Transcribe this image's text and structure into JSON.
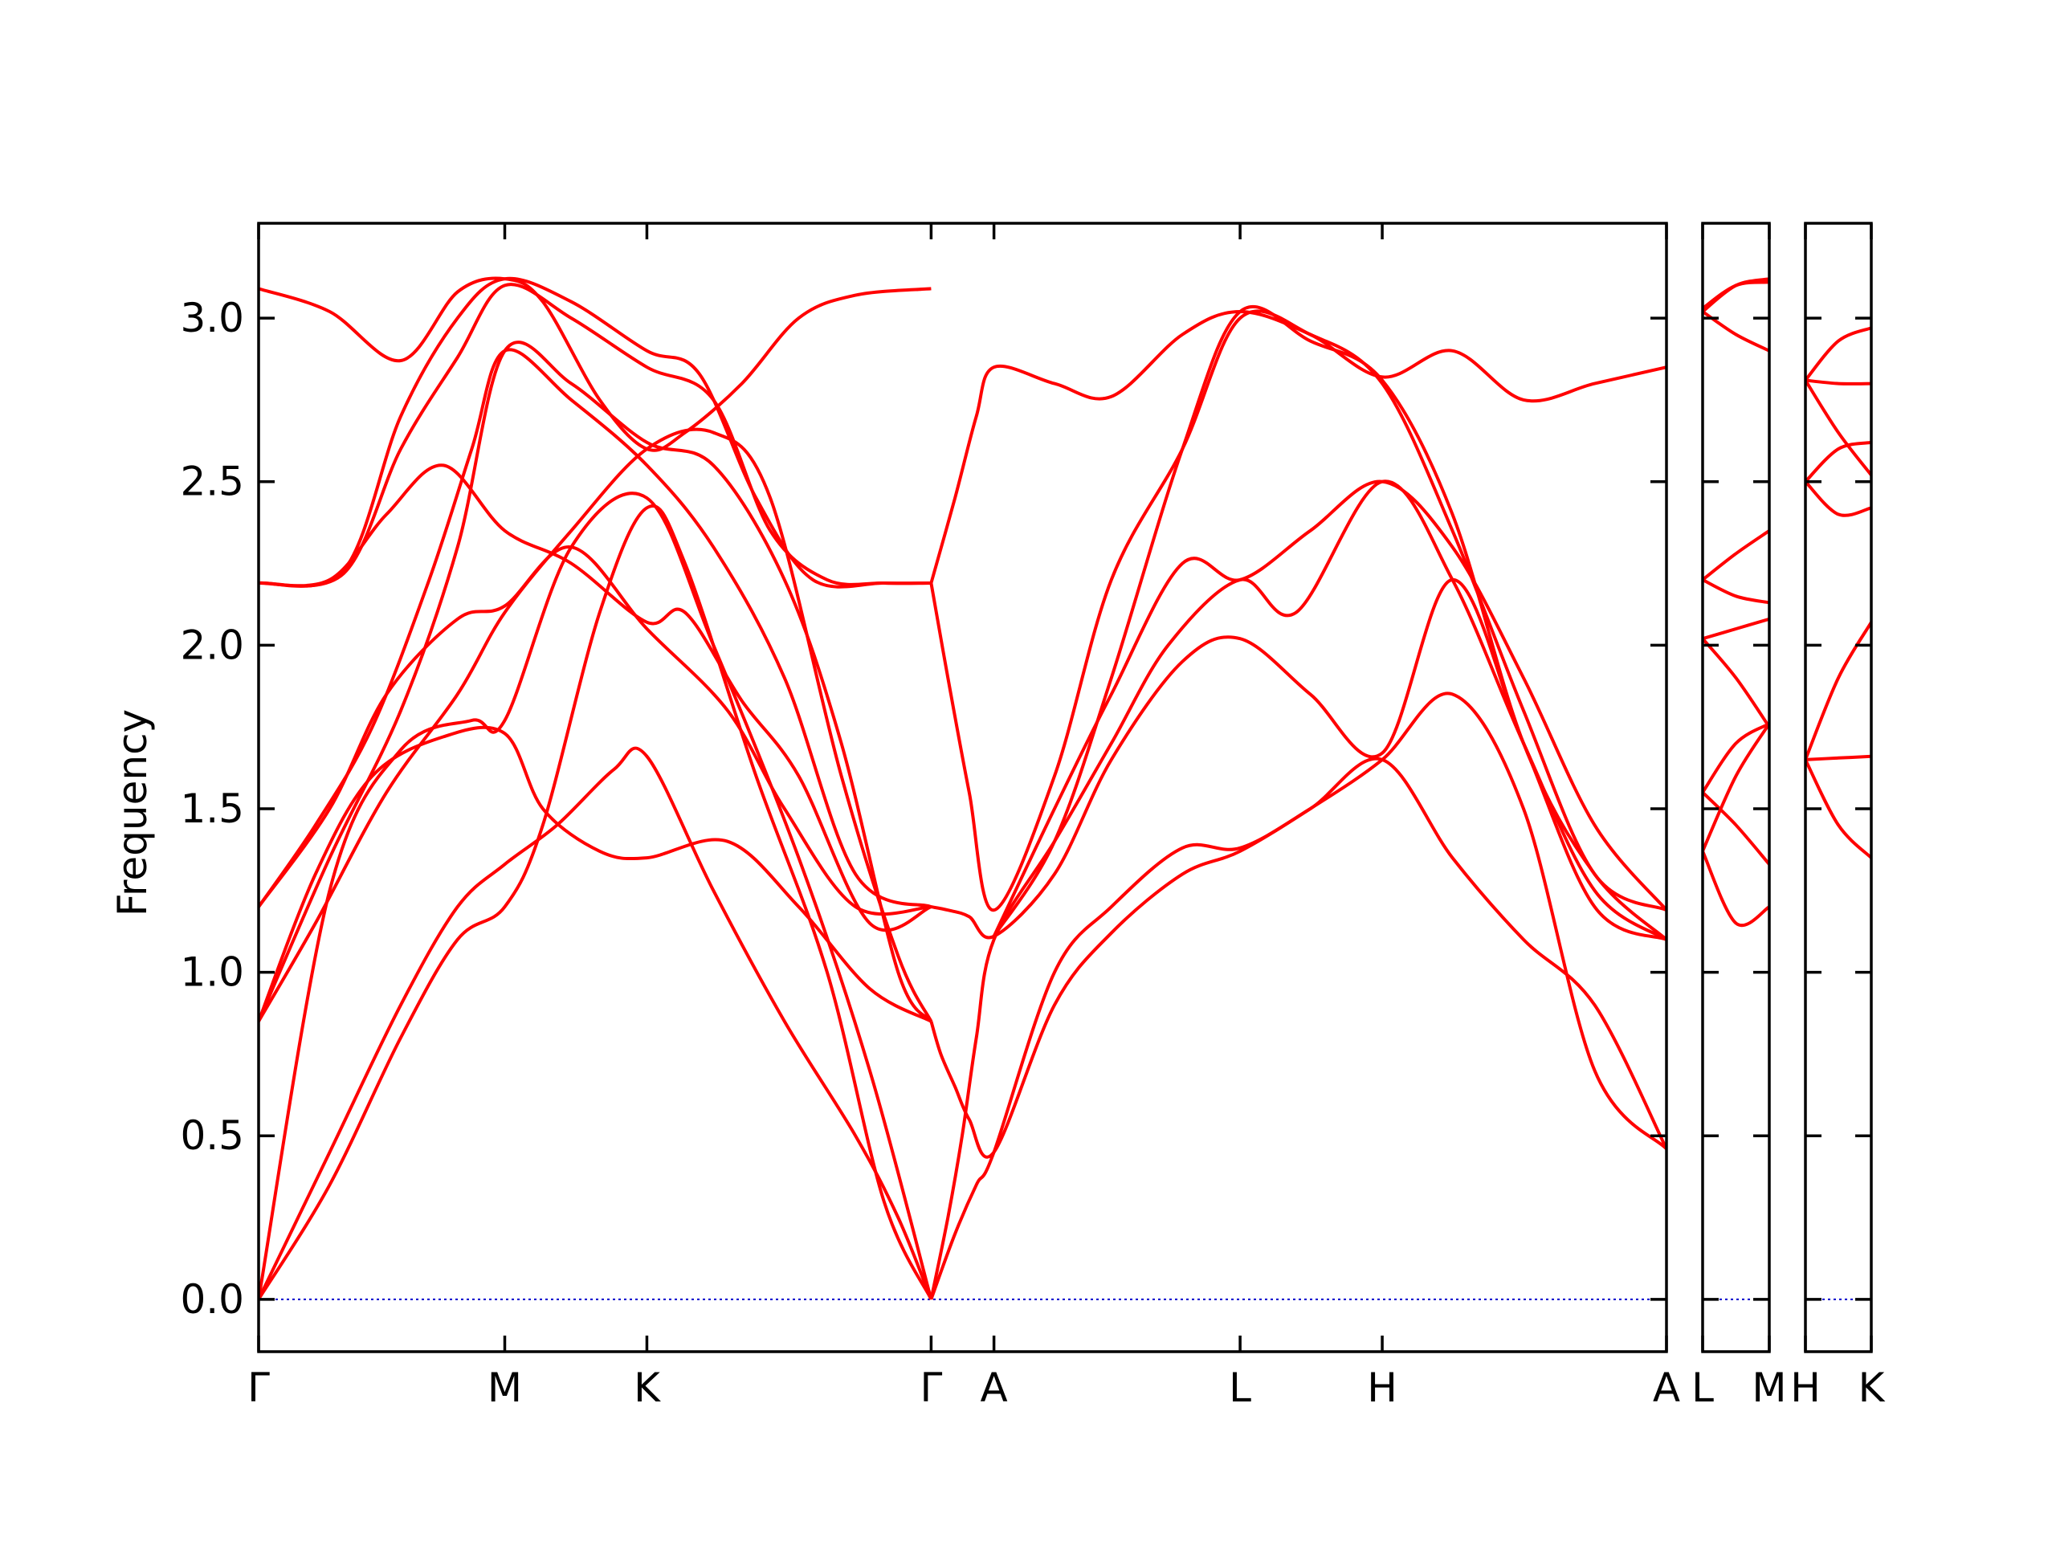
{
  "chart_data": {
    "type": "line",
    "ylabel": "Frequency",
    "yticks": [
      "0.0",
      "0.5",
      "1.0",
      "1.5",
      "2.0",
      "2.5",
      "3.0"
    ],
    "ylim": [
      -0.16,
      3.29
    ],
    "colors": {
      "bands": "#ff0000",
      "zero_line": "#0000cc",
      "axes": "#000000"
    },
    "panels": [
      {
        "name": "Γ-M-K-Γ-A-L-H-A",
        "labels": [
          "Γ",
          "M",
          "K",
          "Γ",
          "A",
          "L",
          "H",
          "A"
        ],
        "label_x": [
          0,
          1.732,
          2.732,
          4.732,
          5.174,
          6.906,
          7.906,
          9.906
        ],
        "bands": [
          {
            "x": [
              0,
              0.5,
              1.0,
              1.4,
              1.732,
              2.0,
              2.4,
              2.732,
              3.0,
              3.5,
              4.0,
              4.4,
              4.732
            ],
            "y": [
              0,
              0.35,
              0.8,
              1.1,
              1.2,
              1.45,
              2.1,
              2.42,
              2.25,
              1.6,
              1.0,
              0.3,
              0
            ]
          },
          {
            "x": [
              0,
              0.5,
              1.0,
              1.4,
              1.732,
              2.1,
              2.5,
              2.732,
              3.2,
              3.7,
              4.2,
              4.5,
              4.732
            ],
            "y": [
              0,
              0.45,
              0.9,
              1.2,
              1.33,
              1.45,
              1.62,
              1.66,
              1.25,
              0.85,
              0.5,
              0.25,
              0
            ]
          },
          {
            "x": [
              0,
              0.5,
              1.0,
              1.5,
              1.732,
              2.2,
              2.732,
              3.2,
              3.8,
              4.3,
              4.732
            ],
            "y": [
              0,
              1.25,
              1.68,
              1.77,
              1.77,
              2.3,
              2.45,
              2.0,
              1.35,
              0.7,
              0
            ]
          },
          {
            "x": [
              0,
              0.4,
              0.8,
              1.3,
              1.732,
              2.0,
              2.4,
              2.732,
              3.3,
              3.8,
              4.3,
              4.732
            ],
            "y": [
              0.85,
              1.3,
              1.6,
              1.72,
              1.73,
              1.5,
              1.37,
              1.35,
              1.4,
              1.2,
              0.95,
              0.85
            ]
          },
          {
            "x": [
              0,
              0.4,
              0.9,
              1.4,
              1.732,
              2.2,
              2.732,
              3.2,
              3.6,
              4.1,
              4.5,
              4.732
            ],
            "y": [
              0.85,
              1.15,
              1.55,
              1.85,
              2.1,
              2.35,
              2.6,
              2.65,
              2.45,
              1.6,
              1.05,
              0.85
            ]
          },
          {
            "x": [
              0,
              0.5,
              0.9,
              1.4,
              1.732,
              2.2,
              2.732,
              3.3,
              3.7,
              4.2,
              4.732
            ],
            "y": [
              1.2,
              1.5,
              1.85,
              2.08,
              2.12,
              2.3,
              2.05,
              1.8,
              1.5,
              1.2,
              1.2
            ]
          },
          {
            "x": [
              0,
              0.4,
              0.8,
              1.2,
              1.5,
              1.732,
              2.2,
              2.732,
              3.2,
              3.7,
              4.2,
              4.732
            ],
            "y": [
              1.2,
              1.45,
              1.75,
              2.2,
              2.6,
              2.9,
              2.75,
              2.55,
              2.3,
              1.9,
              1.3,
              1.2
            ]
          },
          {
            "x": [
              0,
              0.5,
              0.9,
              1.3,
              1.732,
              2.2,
              2.732,
              3.0,
              3.4,
              3.8,
              4.3,
              4.732
            ],
            "y": [
              2.19,
              2.2,
              2.4,
              2.55,
              2.35,
              2.25,
              2.07,
              2.1,
              1.83,
              1.6,
              1.15,
              1.2
            ]
          },
          {
            "x": [
              0,
              0.5,
              1.0,
              1.4,
              1.732,
              2.2,
              2.732,
              3.2,
              3.7,
              4.1,
              4.5,
              4.732
            ],
            "y": [
              0.85,
              1.35,
              1.8,
              2.3,
              2.9,
              2.8,
              2.62,
              2.55,
              2.2,
              1.7,
              1.0,
              0.85
            ]
          },
          {
            "x": [
              0,
              0.6,
              1.0,
              1.4,
              1.732,
              2.2,
              2.732,
              3.2,
              3.6,
              4.0,
              4.4,
              4.732
            ],
            "y": [
              2.19,
              2.22,
              2.6,
              2.88,
              3.1,
              3.0,
              2.85,
              2.75,
              2.35,
              2.2,
              2.19,
              2.19
            ]
          },
          {
            "x": [
              0,
              0.6,
              1.0,
              1.4,
              1.732,
              2.2,
              2.732,
              3.1,
              3.5,
              3.9,
              4.4,
              4.732
            ],
            "y": [
              2.19,
              2.23,
              2.7,
              3.0,
              3.12,
              3.05,
              2.9,
              2.83,
              2.45,
              2.2,
              2.19,
              2.19
            ]
          },
          {
            "x": [
              0,
              0.5,
              1.0,
              1.4,
              1.732,
              2.0,
              2.4,
              2.732,
              3.0,
              3.4,
              3.8,
              4.2,
              4.732
            ],
            "y": [
              3.09,
              3.02,
              2.87,
              3.08,
              3.12,
              3.05,
              2.75,
              2.6,
              2.65,
              2.8,
              3.0,
              3.07,
              3.09
            ]
          },
          {
            "x": [
              4.732,
              4.85,
              4.95,
              5.05,
              5.174,
              5.6,
              6.0,
              6.4,
              6.906,
              7.3,
              7.906,
              8.4,
              8.9,
              9.4,
              9.906
            ],
            "y": [
              0,
              0.25,
              0.5,
              0.8,
              1.1,
              1.4,
              1.7,
              2.0,
              2.2,
              2.1,
              2.5,
              2.2,
              1.7,
              1.25,
              1.1
            ]
          },
          {
            "x": [
              4.732,
              4.8,
              4.9,
              5.0,
              5.174,
              5.6,
              6.0,
              6.5,
              6.906,
              7.4,
              7.906,
              8.4,
              8.9,
              9.4,
              9.906
            ],
            "y": [
              0.85,
              0.75,
              0.65,
              0.55,
              0.45,
              0.9,
              1.12,
              1.3,
              1.37,
              1.5,
              1.65,
              1.85,
              1.5,
              0.7,
              0.46
            ]
          },
          {
            "x": [
              4.732,
              4.9,
              5.05,
              5.174,
              5.6,
              6.0,
              6.5,
              6.906,
              7.4,
              7.906,
              8.4,
              8.9,
              9.4,
              9.906
            ],
            "y": [
              0,
              0.2,
              0.35,
              0.45,
              1.0,
              1.2,
              1.38,
              1.38,
              1.5,
              1.65,
              1.35,
              1.1,
              0.9,
              0.46
            ]
          },
          {
            "x": [
              4.732,
              4.85,
              5.0,
              5.174,
              5.6,
              6.0,
              6.5,
              6.906,
              7.4,
              7.906,
              8.4,
              8.9,
              9.4,
              9.906
            ],
            "y": [
              1.2,
              1.19,
              1.17,
              1.11,
              1.3,
              1.65,
              1.95,
              2.02,
              1.85,
              1.67,
              2.2,
              1.7,
              1.2,
              1.1
            ]
          },
          {
            "x": [
              4.732,
              4.85,
              5.0,
              5.174,
              5.6,
              6.0,
              6.5,
              6.906,
              7.4,
              7.906,
              8.4,
              8.9,
              9.4,
              9.906
            ],
            "y": [
              2.19,
              1.9,
              1.55,
              1.19,
              1.6,
              2.2,
              2.6,
              3.0,
              2.95,
              2.8,
              2.35,
              1.8,
              1.3,
              1.19
            ]
          },
          {
            "x": [
              4.732,
              4.9,
              5.05,
              5.174,
              5.6,
              6.0,
              6.5,
              6.906,
              7.4,
              7.906,
              8.4,
              8.9,
              9.4,
              9.906
            ],
            "y": [
              2.19,
              2.45,
              2.7,
              2.85,
              2.8,
              2.76,
              2.95,
              3.02,
              2.95,
              2.82,
              2.9,
              2.75,
              2.8,
              2.85
            ]
          },
          {
            "x": [
              5.174,
              5.6,
              6.0,
              6.5,
              6.906,
              7.4,
              7.906,
              8.4,
              8.9,
              9.4,
              9.906
            ],
            "y": [
              1.11,
              1.4,
              1.9,
              2.6,
              3.02,
              2.93,
              2.81,
              2.4,
              1.7,
              1.3,
              1.1
            ]
          },
          {
            "x": [
              5.174,
              5.6,
              6.0,
              6.5,
              6.906,
              7.4,
              7.906,
              8.4,
              8.9,
              9.4,
              9.906
            ],
            "y": [
              1.11,
              1.5,
              1.85,
              2.25,
              2.2,
              2.35,
              2.5,
              2.3,
              1.9,
              1.45,
              1.19
            ]
          }
        ]
      },
      {
        "name": "L-M",
        "labels": [
          "L",
          "M"
        ],
        "label_x": [
          0,
          1
        ],
        "bands": [
          {
            "x": [
              0,
              0.5,
              1
            ],
            "y": [
              1.37,
              1.6,
              1.76
            ]
          },
          {
            "x": [
              0,
              0.5,
              1
            ],
            "y": [
              1.37,
              1.15,
              1.2
            ]
          },
          {
            "x": [
              0,
              0.5,
              1
            ],
            "y": [
              1.55,
              1.45,
              1.33
            ]
          },
          {
            "x": [
              0,
              0.5,
              1
            ],
            "y": [
              1.55,
              1.7,
              1.76
            ]
          },
          {
            "x": [
              0,
              0.5,
              1
            ],
            "y": [
              2.02,
              2.05,
              2.08
            ]
          },
          {
            "x": [
              0,
              0.5,
              1
            ],
            "y": [
              2.02,
              1.9,
              1.75
            ]
          },
          {
            "x": [
              0,
              0.5,
              1
            ],
            "y": [
              2.2,
              2.28,
              2.35
            ]
          },
          {
            "x": [
              0,
              0.5,
              1
            ],
            "y": [
              2.2,
              2.15,
              2.13
            ]
          },
          {
            "x": [
              0,
              0.5,
              1
            ],
            "y": [
              3.02,
              2.95,
              2.9
            ]
          },
          {
            "x": [
              0,
              0.5,
              1
            ],
            "y": [
              3.02,
              3.1,
              3.12
            ]
          },
          {
            "x": [
              0,
              0.5,
              1
            ],
            "y": [
              3.03,
              3.1,
              3.11
            ]
          }
        ]
      },
      {
        "name": "H-K",
        "labels": [
          "H",
          "K"
        ],
        "label_x": [
          0,
          1
        ],
        "bands": [
          {
            "x": [
              0,
              0.5,
              1
            ],
            "y": [
              1.65,
              1.45,
              1.35
            ]
          },
          {
            "x": [
              0,
              0.5,
              1
            ],
            "y": [
              1.65,
              1.655,
              1.66
            ]
          },
          {
            "x": [
              0,
              0.5,
              1
            ],
            "y": [
              1.65,
              1.9,
              2.07
            ]
          },
          {
            "x": [
              0,
              0.5,
              1
            ],
            "y": [
              2.5,
              2.4,
              2.42
            ]
          },
          {
            "x": [
              0,
              0.5,
              1
            ],
            "y": [
              2.5,
              2.6,
              2.62
            ]
          },
          {
            "x": [
              0,
              0.5,
              1
            ],
            "y": [
              2.81,
              2.65,
              2.52
            ]
          },
          {
            "x": [
              0,
              0.5,
              1
            ],
            "y": [
              2.81,
              2.8,
              2.8
            ]
          },
          {
            "x": [
              0,
              0.5,
              1
            ],
            "y": [
              2.81,
              2.93,
              2.97
            ]
          }
        ]
      }
    ]
  }
}
